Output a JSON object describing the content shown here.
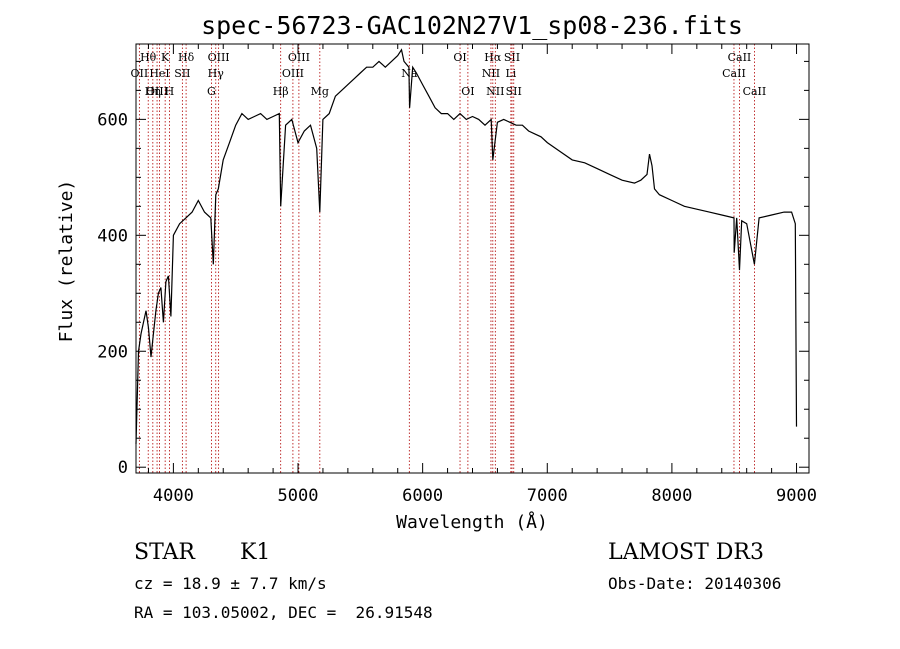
{
  "chart_data": {
    "type": "line",
    "title": "spec-56723-GAC102N27V1_sp08-236.fits",
    "xlabel": "Wavelength (Å)",
    "ylabel": "Flux (relative)",
    "xlim": [
      3700,
      9100
    ],
    "ylim": [
      -10,
      730
    ],
    "xticks": [
      4000,
      5000,
      6000,
      7000,
      8000,
      9000
    ],
    "yticks": [
      0,
      200,
      400,
      600
    ],
    "series": [
      {
        "name": "flux",
        "x": [
          3700,
          3720,
          3740,
          3760,
          3780,
          3800,
          3820,
          3840,
          3860,
          3880,
          3900,
          3920,
          3940,
          3960,
          3980,
          4000,
          4050,
          4100,
          4150,
          4200,
          4250,
          4300,
          4320,
          4340,
          4360,
          4400,
          4450,
          4500,
          4550,
          4600,
          4650,
          4700,
          4750,
          4800,
          4850,
          4861,
          4900,
          4950,
          5000,
          5050,
          5100,
          5150,
          5175,
          5200,
          5250,
          5300,
          5350,
          5400,
          5450,
          5500,
          5550,
          5600,
          5650,
          5700,
          5750,
          5800,
          5830,
          5850,
          5890,
          5895,
          5920,
          5950,
          6000,
          6050,
          6100,
          6150,
          6200,
          6250,
          6300,
          6350,
          6400,
          6450,
          6500,
          6550,
          6563,
          6600,
          6650,
          6700,
          6750,
          6800,
          6850,
          6900,
          6950,
          7000,
          7100,
          7200,
          7300,
          7400,
          7500,
          7600,
          7700,
          7750,
          7800,
          7820,
          7840,
          7860,
          7900,
          8000,
          8100,
          8200,
          8300,
          8400,
          8498,
          8500,
          8520,
          8542,
          8560,
          8600,
          8662,
          8700,
          8800,
          8900,
          8960,
          8990,
          9000
        ],
        "y": [
          40,
          200,
          230,
          250,
          270,
          240,
          190,
          230,
          270,
          300,
          310,
          250,
          320,
          330,
          260,
          400,
          420,
          430,
          440,
          460,
          440,
          430,
          350,
          470,
          480,
          530,
          560,
          590,
          610,
          600,
          605,
          610,
          600,
          605,
          610,
          450,
          590,
          600,
          560,
          580,
          590,
          550,
          440,
          600,
          610,
          640,
          650,
          660,
          670,
          680,
          690,
          690,
          700,
          690,
          700,
          710,
          720,
          700,
          690,
          620,
          690,
          680,
          660,
          640,
          620,
          610,
          610,
          600,
          610,
          600,
          605,
          600,
          590,
          600,
          530,
          595,
          600,
          595,
          590,
          590,
          580,
          575,
          570,
          560,
          545,
          530,
          525,
          515,
          505,
          495,
          490,
          495,
          505,
          540,
          520,
          480,
          470,
          460,
          450,
          445,
          440,
          435,
          430,
          370,
          430,
          340,
          425,
          420,
          350,
          430,
          435,
          440,
          440,
          420,
          70
        ]
      }
    ],
    "spectral_lines": [
      {
        "label": "Hθ",
        "wl": 3798,
        "row": 1
      },
      {
        "label": "OII",
        "wl": 3727,
        "row": 2
      },
      {
        "label": "OIII",
        "wl": 3869,
        "row": 3
      },
      {
        "label": "K",
        "wl": 3934,
        "row": 1
      },
      {
        "label": "HeI",
        "wl": 3889,
        "row": 2
      },
      {
        "label": "Hη",
        "wl": 3835,
        "row": 3
      },
      {
        "label": "H",
        "wl": 3968,
        "row": 3
      },
      {
        "label": "SII",
        "wl": 4072,
        "row": 2
      },
      {
        "label": "Hδ",
        "wl": 4102,
        "row": 1
      },
      {
        "label": "OIII",
        "wl": 4363,
        "row": 1
      },
      {
        "label": "Hγ",
        "wl": 4340,
        "row": 2
      },
      {
        "label": "G",
        "wl": 4305,
        "row": 3
      },
      {
        "label": "Hβ",
        "wl": 4861,
        "row": 3
      },
      {
        "label": "OIII",
        "wl": 5007,
        "row": 1
      },
      {
        "label": "OIII",
        "wl": 4959,
        "row": 2
      },
      {
        "label": "Mg",
        "wl": 5175,
        "row": 3
      },
      {
        "label": "Na",
        "wl": 5893,
        "row": 2
      },
      {
        "label": "OI",
        "wl": 6300,
        "row": 1
      },
      {
        "label": "OI",
        "wl": 6363,
        "row": 3
      },
      {
        "label": "Hα",
        "wl": 6563,
        "row": 1
      },
      {
        "label": "NII",
        "wl": 6548,
        "row": 2
      },
      {
        "label": "NII",
        "wl": 6583,
        "row": 3
      },
      {
        "label": "SII",
        "wl": 6717,
        "row": 1
      },
      {
        "label": "Li",
        "wl": 6708,
        "row": 2
      },
      {
        "label": "SII",
        "wl": 6731,
        "row": 3
      },
      {
        "label": "CaII",
        "wl": 8542,
        "row": 1
      },
      {
        "label": "CaII",
        "wl": 8498,
        "row": 2
      },
      {
        "label": "CaII",
        "wl": 8662,
        "row": 3
      }
    ]
  },
  "info": {
    "class": "STAR",
    "subclass": "K1",
    "survey": "LAMOST DR3",
    "cz": "cz = 18.9 ± 7.7 km/s",
    "obs_date": "Obs-Date: 20140306",
    "radec": "RA = 103.05002, DEC =  26.91548"
  }
}
